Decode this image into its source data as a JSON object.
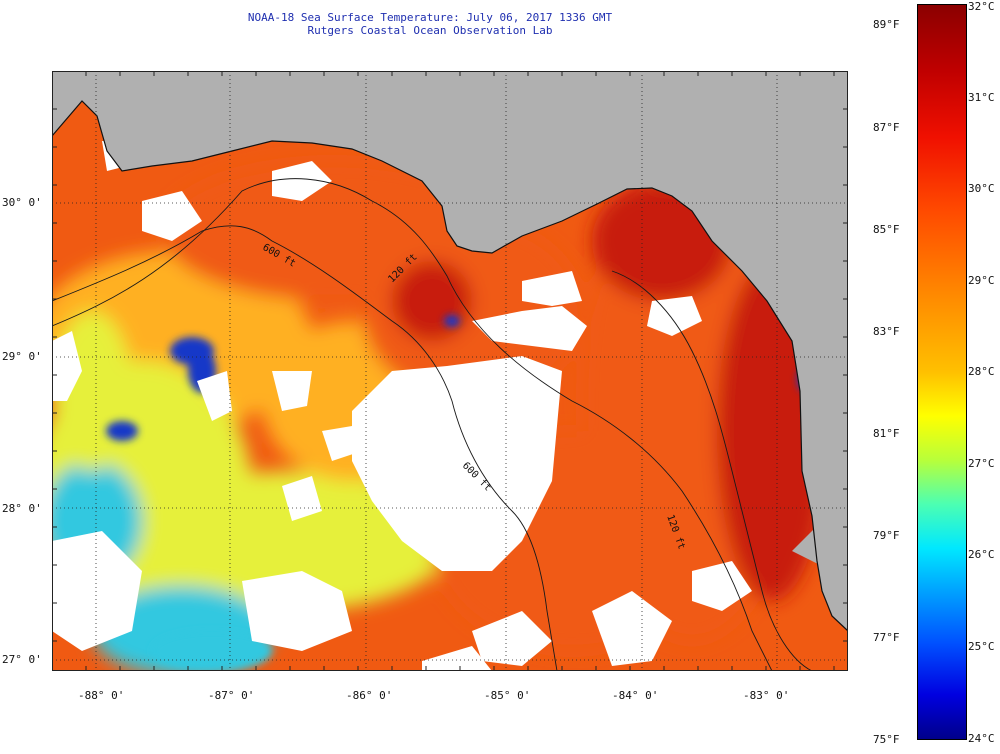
{
  "header": {
    "title": "NOAA-18 Sea Surface Temperature:  July 06, 2017 1336 GMT",
    "subtitle": "Rutgers Coastal Ocean Observation Lab"
  },
  "map": {
    "lat_labels": [
      "30° 0'",
      "29° 0'",
      "28° 0'",
      "27° 0'"
    ],
    "lon_labels": [
      "-88° 0'",
      "-87° 0'",
      "-86° 0'",
      "-85° 0'",
      "-84° 0'",
      "-83° 0'"
    ],
    "contours": [
      "600 ft",
      "120 ft",
      "600 ft",
      "120 ft"
    ],
    "colors": {
      "land": "#b0b0b0",
      "cloud": "#ffffff",
      "warm": "#f05a12",
      "hot": "#c81a10",
      "mid": "#ffb020",
      "cool": "#e6f03a",
      "cold": "#30c8e0",
      "coldest": "#1838c8"
    }
  },
  "colorbar": {
    "fahrenheit": [
      "89°F",
      "87°F",
      "85°F",
      "83°F",
      "81°F",
      "79°F",
      "77°F",
      "75°F"
    ],
    "celsius": [
      "32°C",
      "31°C",
      "30°C",
      "29°C",
      "28°C",
      "27°C",
      "26°C",
      "25°C",
      "24°C"
    ]
  }
}
